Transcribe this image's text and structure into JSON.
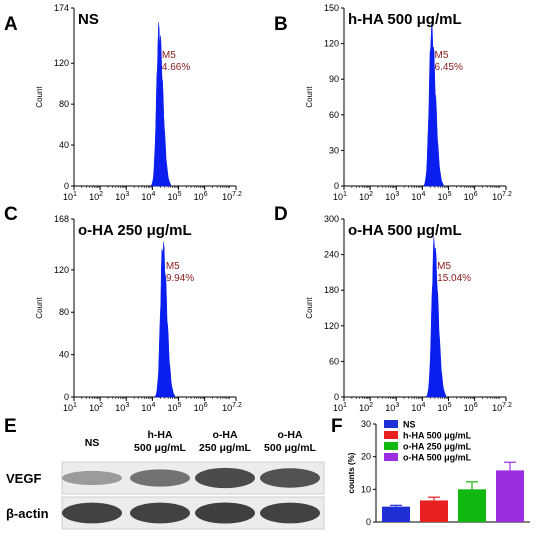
{
  "panels": [
    {
      "letter": "A",
      "condition": "NS",
      "gate": "M5",
      "percent": "4.66%",
      "ymax_label": "174",
      "yticks": [
        0,
        40,
        80,
        120
      ],
      "ylabel": "Count",
      "peak_center": 4.25,
      "peak_height_frac": 0.93
    },
    {
      "letter": "B",
      "condition": "h-HA 500 μg/mL",
      "gate": "M5",
      "percent": "6.45%",
      "ymax_label": "150",
      "yticks": [
        0,
        30,
        60,
        90,
        120
      ],
      "ylabel": "Count",
      "peak_center": 4.35,
      "peak_height_frac": 0.93
    },
    {
      "letter": "C",
      "condition": "o-HA 250 μg/mL",
      "gate": "M5",
      "percent": "9.94%",
      "ymax_label": "168",
      "yticks": [
        0,
        40,
        80,
        120
      ],
      "ylabel": "Count",
      "peak_center": 4.4,
      "peak_height_frac": 0.9
    },
    {
      "letter": "D",
      "condition": "o-HA 500 μg/mL",
      "gate": "M5",
      "percent": "15.04%",
      "ymax_label": "300",
      "yticks": [
        0,
        60,
        120,
        180,
        240
      ],
      "ylabel": "Count",
      "peak_center": 4.45,
      "peak_height_frac": 0.91
    }
  ],
  "xticks": [
    {
      "base": "10",
      "exp": "1"
    },
    {
      "base": "10",
      "exp": "2"
    },
    {
      "base": "10",
      "exp": "3"
    },
    {
      "base": "10",
      "exp": "4"
    },
    {
      "base": "10",
      "exp": "5"
    },
    {
      "base": "10",
      "exp": "6"
    },
    {
      "base": "10",
      "exp": "7.2"
    }
  ],
  "blot": {
    "letter": "E",
    "columns": [
      {
        "line1": "NS",
        "line2": ""
      },
      {
        "line1": "h-HA",
        "line2": "500 μg/mL"
      },
      {
        "line1": "o-HA",
        "line2": "250 μg/mL"
      },
      {
        "line1": "o-HA",
        "line2": "500 μg/mL"
      }
    ],
    "rows": [
      {
        "label": "VEGF",
        "intensities": [
          0.35,
          0.6,
          0.85,
          0.8
        ]
      },
      {
        "label": "β-actin",
        "intensities": [
          0.9,
          0.9,
          0.92,
          0.9
        ]
      }
    ]
  },
  "chart_data": {
    "type": "bar",
    "letter": "F",
    "categories": [
      "NS",
      "h-HA 500 μg/mL",
      "o-HA 250 μg/mL",
      "o-HA 500 μg/mL"
    ],
    "values": [
      4.7,
      6.6,
      10.0,
      15.8
    ],
    "errors": [
      0.4,
      1.0,
      2.3,
      2.5
    ],
    "colors": [
      "#1f2fd6",
      "#e82020",
      "#10b810",
      "#9b2ee0"
    ],
    "ylabel": "counts (%)",
    "yticks": [
      0,
      10,
      20,
      30
    ],
    "ylim": [
      0,
      30
    ],
    "legend_position": "top-left"
  }
}
